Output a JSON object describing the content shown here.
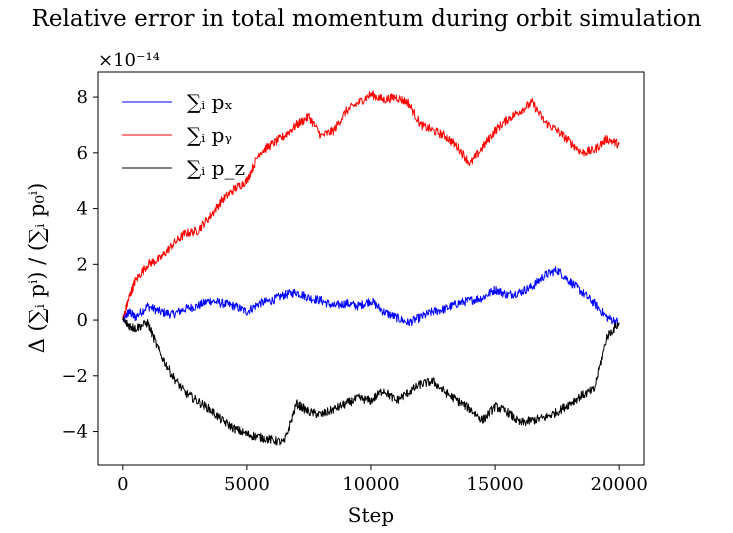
{
  "chart_data": {
    "type": "line",
    "title": "Relative error in total momentum during orbit simulation",
    "xlabel": "Step",
    "ylabel": "Δ (∑ᵢ pⁱ) / (∑ᵢ p₀ⁱ)",
    "y_multiplier": "×10⁻¹⁴",
    "xlim": [
      -1000,
      21000
    ],
    "ylim": [
      -5.2,
      8.9
    ],
    "xticks": [
      0,
      5000,
      10000,
      15000,
      20000
    ],
    "xtick_labels": [
      "0",
      "5000",
      "10000",
      "15000",
      "20000"
    ],
    "yticks": [
      -4,
      -2,
      0,
      2,
      4,
      6,
      8
    ],
    "ytick_labels": [
      "−4",
      "−2",
      "0",
      "2",
      "4",
      "6",
      "8"
    ],
    "grid": false,
    "legend_position": "top-left",
    "series": [
      {
        "name": "∑ᵢ pₓ",
        "color": "#0000ff",
        "x": [
          0,
          250,
          500,
          1000,
          1500,
          2000,
          2500,
          3000,
          3500,
          4000,
          4500,
          5000,
          5500,
          6000,
          6500,
          7000,
          7500,
          8000,
          8500,
          9000,
          9500,
          10000,
          10500,
          11000,
          11500,
          12000,
          12500,
          13000,
          13500,
          14000,
          14500,
          15000,
          15500,
          16000,
          16500,
          17000,
          17500,
          18000,
          18500,
          19000,
          19500,
          20000
        ],
        "values": [
          0,
          0.3,
          0.1,
          0.5,
          0.3,
          0.2,
          0.4,
          0.5,
          0.7,
          0.6,
          0.5,
          0.3,
          0.6,
          0.7,
          0.9,
          1.0,
          0.8,
          0.7,
          0.5,
          0.6,
          0.5,
          0.7,
          0.3,
          0.1,
          -0.1,
          0.1,
          0.3,
          0.4,
          0.6,
          0.7,
          0.8,
          1.1,
          0.9,
          1.0,
          1.2,
          1.6,
          1.8,
          1.4,
          1.0,
          0.6,
          0.1,
          -0.1
        ]
      },
      {
        "name": "∑ᵢ pᵧ",
        "color": "#ff0000",
        "x": [
          0,
          250,
          500,
          1000,
          1500,
          2000,
          2500,
          3000,
          3500,
          4000,
          4500,
          5000,
          5500,
          6000,
          6500,
          7000,
          7500,
          8000,
          8500,
          9000,
          9500,
          10000,
          10500,
          11000,
          11500,
          12000,
          12500,
          13000,
          13500,
          14000,
          14500,
          15000,
          15500,
          16000,
          16500,
          17000,
          17500,
          18000,
          18500,
          19000,
          19500,
          20000
        ],
        "values": [
          0,
          0.8,
          1.4,
          2.0,
          2.2,
          2.7,
          3.1,
          3.2,
          3.7,
          4.3,
          4.7,
          5.0,
          6.0,
          6.3,
          6.6,
          7.0,
          7.3,
          6.6,
          6.8,
          7.5,
          7.8,
          8.1,
          7.9,
          8.0,
          7.8,
          7.0,
          6.8,
          6.6,
          6.2,
          5.6,
          6.2,
          6.8,
          7.2,
          7.5,
          7.8,
          7.1,
          6.8,
          6.4,
          6.0,
          6.1,
          6.5,
          6.3
        ]
      },
      {
        "name": "∑ᵢ p_z",
        "color": "#000000",
        "x": [
          0,
          250,
          500,
          1000,
          1500,
          2000,
          2500,
          3000,
          3500,
          4000,
          4500,
          5000,
          5500,
          6000,
          6500,
          7000,
          7500,
          8000,
          8500,
          9000,
          9500,
          10000,
          10500,
          11000,
          11500,
          12000,
          12500,
          13000,
          13500,
          14000,
          14500,
          15000,
          15500,
          16000,
          16500,
          17000,
          17500,
          18000,
          18500,
          19000,
          19500,
          20000
        ],
        "values": [
          0,
          -0.2,
          -0.3,
          -0.1,
          -1.2,
          -2.0,
          -2.6,
          -2.9,
          -3.2,
          -3.6,
          -3.9,
          -4.1,
          -4.2,
          -4.3,
          -4.4,
          -3.0,
          -3.3,
          -3.4,
          -3.2,
          -3.0,
          -2.8,
          -2.9,
          -2.5,
          -2.9,
          -2.6,
          -2.3,
          -2.2,
          -2.6,
          -2.9,
          -3.2,
          -3.6,
          -3.1,
          -3.3,
          -3.7,
          -3.6,
          -3.5,
          -3.3,
          -3.0,
          -2.7,
          -2.5,
          -0.6,
          -0.1
        ]
      }
    ]
  }
}
